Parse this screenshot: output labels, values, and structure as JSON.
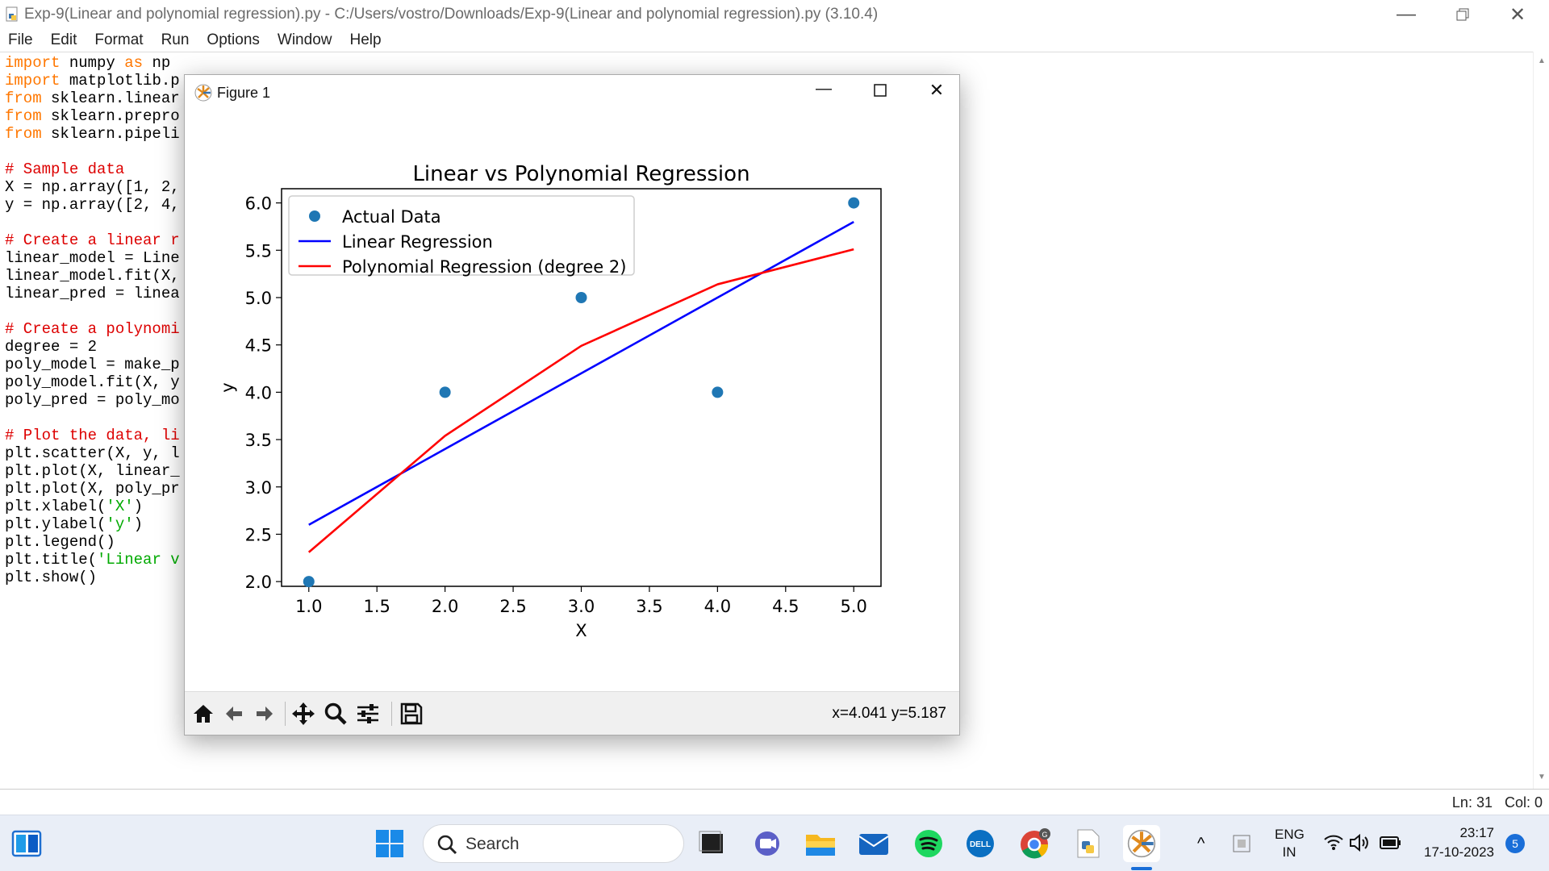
{
  "window": {
    "title": "Exp-9(Linear and polynomial regression).py - C:/Users/vostro/Downloads/Exp-9(Linear and polynomial regression).py (3.10.4)"
  },
  "menu": [
    "File",
    "Edit",
    "Format",
    "Run",
    "Options",
    "Window",
    "Help"
  ],
  "editor_lines": [
    {
      "kw": "import",
      "rest": " numpy ",
      "kw2": "as",
      "rest2": " np"
    },
    {
      "kw": "import",
      "rest": " matplotlib.p"
    },
    {
      "kw": "from",
      "rest": " sklearn.linear"
    },
    {
      "kw": "from",
      "rest": " sklearn.prepro"
    },
    {
      "kw": "from",
      "rest": " sklearn.pipeli"
    },
    {
      "rest": ""
    },
    {
      "cm": "# Sample data"
    },
    {
      "rest": "X = np.array([1, 2,"
    },
    {
      "rest": "y = np.array([2, 4,"
    },
    {
      "rest": ""
    },
    {
      "cm": "# Create a linear r"
    },
    {
      "rest": "linear_model = Line"
    },
    {
      "rest": "linear_model.fit(X,"
    },
    {
      "rest": "linear_pred = linea"
    },
    {
      "rest": ""
    },
    {
      "cm": "# Create a polynomi"
    },
    {
      "rest": "degree = 2"
    },
    {
      "rest": "poly_model = make_p"
    },
    {
      "rest": "poly_model.fit(X, y"
    },
    {
      "rest": "poly_pred = poly_mo"
    },
    {
      "rest": ""
    },
    {
      "cm": "# Plot the data, li"
    },
    {
      "rest": "plt.scatter(X, y, l"
    },
    {
      "rest": "plt.plot(X, linear_"
    },
    {
      "rest": "plt.plot(X, poly_pr"
    },
    {
      "rest": "plt.xlabel(",
      "st": "'X'",
      "rest2": ")"
    },
    {
      "rest": "plt.ylabel(",
      "st": "'y'",
      "rest2": ")"
    },
    {
      "rest": "plt.legend()"
    },
    {
      "rest": "plt.title(",
      "st": "'Linear v"
    },
    {
      "rest": "plt.show()"
    }
  ],
  "status": {
    "text": "Ln: 31   Col: 0"
  },
  "figure": {
    "title": "Figure 1",
    "coord_readout": "x=4.041 y=5.187"
  },
  "chart_data": {
    "type": "scatter",
    "title": "Linear vs Polynomial Regression",
    "xlabel": "X",
    "ylabel": "y",
    "xlim": [
      0.8,
      5.2
    ],
    "ylim": [
      1.95,
      6.15
    ],
    "xticks": [
      1.0,
      1.5,
      2.0,
      2.5,
      3.0,
      3.5,
      4.0,
      4.5,
      5.0
    ],
    "yticks": [
      2.0,
      2.5,
      3.0,
      3.5,
      4.0,
      4.5,
      5.0,
      5.5,
      6.0
    ],
    "legend_position": "top-left",
    "series": [
      {
        "name": "Actual Data",
        "kind": "scatter",
        "color": "#1f77b4",
        "x": [
          1,
          2,
          3,
          4,
          5
        ],
        "y": [
          2,
          4,
          5,
          4,
          6
        ]
      },
      {
        "name": "Linear Regression",
        "kind": "line",
        "color": "#0000ff",
        "x": [
          1,
          2,
          3,
          4,
          5
        ],
        "y": [
          2.6,
          3.4,
          4.2,
          5.0,
          5.8
        ]
      },
      {
        "name": "Polynomial Regression (degree 2)",
        "kind": "line",
        "color": "#ff0000",
        "x": [
          1,
          2,
          3,
          4,
          5
        ],
        "y": [
          2.31,
          3.54,
          4.49,
          5.14,
          5.51
        ]
      }
    ]
  },
  "taskbar": {
    "search_label": "Search",
    "lang1": "ENG",
    "lang2": "IN",
    "time": "23:17",
    "date": "17-10-2023",
    "notif": "5"
  }
}
